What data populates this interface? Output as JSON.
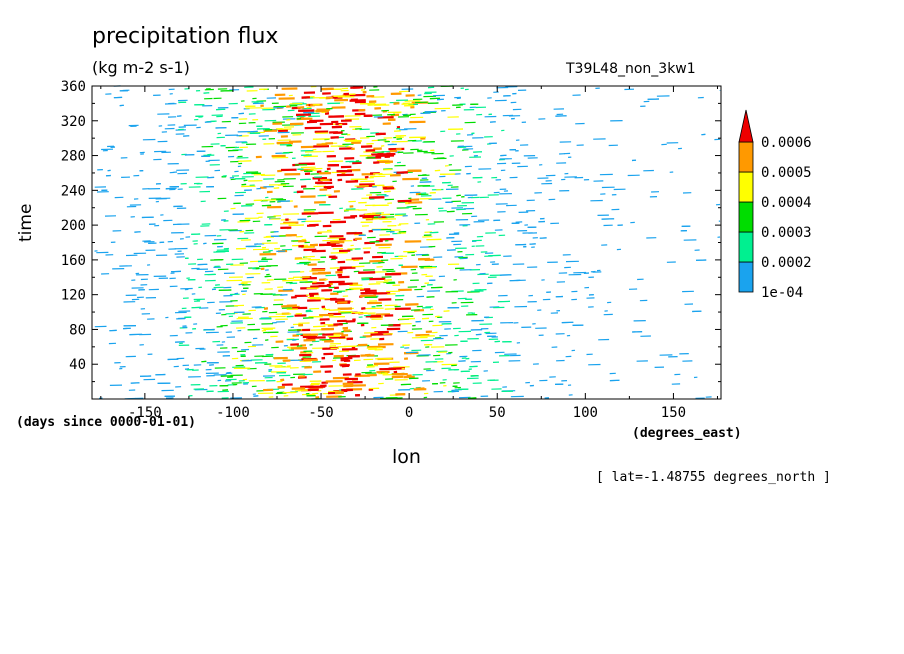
{
  "header": {
    "title": "precipitation flux",
    "units": "(kg m-2 s-1)",
    "run_name": "T39L48_non_3kw1"
  },
  "axes": {
    "ylabel": "time",
    "xlabel": "lon",
    "y_unit_note": "(days since 0000-01-01)",
    "x_unit_note": "(degrees_east)"
  },
  "footer": {
    "lat_note": "[ lat=-1.48755 degrees_north ]"
  },
  "colorbar": {
    "levels": [
      "1e-04",
      "0.0002",
      "0.0003",
      "0.0004",
      "0.0005",
      "0.0006"
    ],
    "bands": [
      {
        "range": "1e-04 to 0.0002",
        "color": "#1aa3ee"
      },
      {
        "range": "0.0002 to 0.0003",
        "color": "#00f090"
      },
      {
        "range": "0.0003 to 0.0004",
        "color": "#00dd00"
      },
      {
        "range": "0.0004 to 0.0005",
        "color": "#ffff00"
      },
      {
        "range": "0.0005 to 0.0006",
        "color": "#ff9900"
      },
      {
        "range": "> 0.0006",
        "color": "#ee0000"
      }
    ]
  },
  "chart_data": {
    "type": "heatmap",
    "title": "precipitation flux",
    "subtitle": "(kg m-2 s-1)",
    "xlabel": "lon",
    "ylabel": "time",
    "xlim": [
      -180,
      177
    ],
    "ylim": [
      0,
      360
    ],
    "x_ticks": [
      -150,
      -100,
      -50,
      0,
      50,
      100,
      150
    ],
    "y_ticks": [
      40,
      80,
      120,
      160,
      200,
      240,
      280,
      320,
      360
    ],
    "x_tick_labels": [
      "-150",
      "-100",
      "-50",
      "0",
      "50",
      "100",
      "150"
    ],
    "y_tick_labels": [
      "40",
      "80",
      "120",
      "160",
      "200",
      "240",
      "280",
      "320",
      "360"
    ],
    "grid": false,
    "legend": "colorbar, right",
    "contour_levels": [
      0.0001,
      0.0002,
      0.0003,
      0.0004,
      0.0005,
      0.0006
    ],
    "description_values": {
      "intense_band_lon_range": [
        -100,
        50
      ],
      "peak_lon_approx": -40,
      "sparse_region_lon_range": [
        60,
        177
      ]
    }
  }
}
